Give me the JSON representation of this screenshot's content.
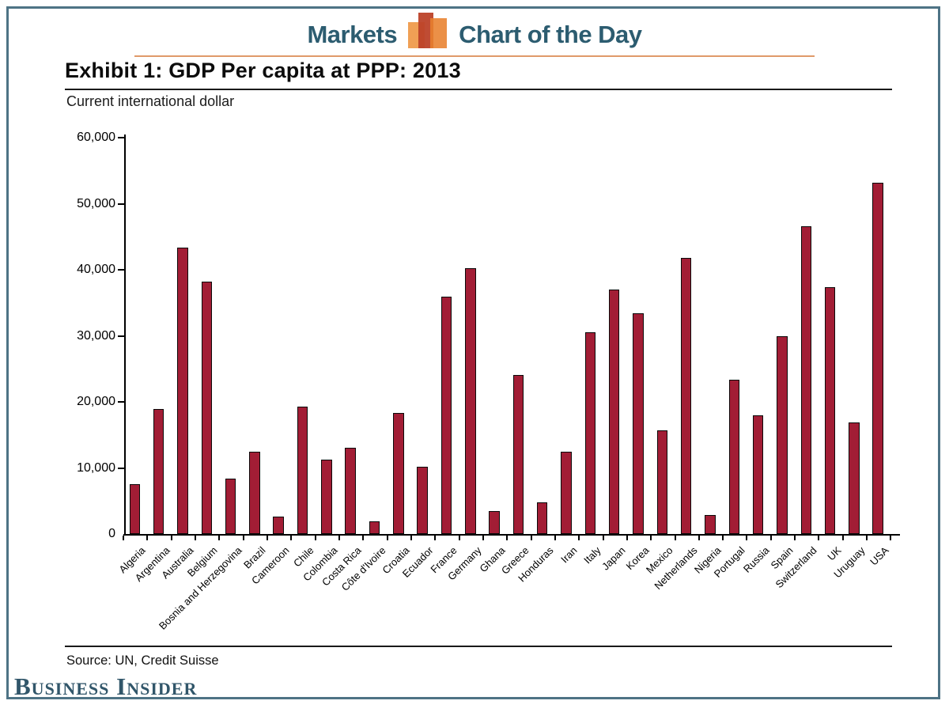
{
  "header": {
    "left_label": "Markets",
    "right_label": "Chart of the Day",
    "icon": "bar-chart-icon",
    "accent_color": "#2c5c70",
    "rule_color": "#e09a6a"
  },
  "title": "Exhibit 1: GDP Per capita at PPP: 2013",
  "subtitle": "Current international dollar",
  "source": "Source: UN, Credit Suisse",
  "footer": {
    "logo_text": "Business Insider",
    "logo_color": "#31566a"
  },
  "frame_color": "#4e7385",
  "chart_data": {
    "type": "bar",
    "title": "Exhibit 1: GDP Per capita at PPP: 2013",
    "ylabel": "Current international dollar",
    "xlabel": "",
    "ylim": [
      0,
      60000
    ],
    "yticks": [
      0,
      10000,
      20000,
      30000,
      40000,
      50000,
      60000
    ],
    "ytick_labels": [
      "0",
      "10,000",
      "20,000",
      "30,000",
      "40,000",
      "50,000",
      "60,000"
    ],
    "grid": false,
    "legend": "none",
    "bar_color": "#a21d35",
    "bar_edge_color": "#000000",
    "categories": [
      "Algeria",
      "Argentina",
      "Australia",
      "Belgium",
      "Bosnia and Herzegovina",
      "Brazil",
      "Cameroon",
      "Chile",
      "Colombia",
      "Costa Rica",
      "Côte d'Ivoire",
      "Croatia",
      "Ecuador",
      "France",
      "Germany",
      "Ghana",
      "Greece",
      "Honduras",
      "Iran",
      "Italy",
      "Japan",
      "Korea",
      "Mexico",
      "Netherlands",
      "Nigeria",
      "Portugal",
      "Russia",
      "Spain",
      "Switzerland",
      "UK",
      "Uruguay",
      "USA"
    ],
    "values": [
      7500,
      18900,
      43400,
      38200,
      8400,
      12400,
      2600,
      19300,
      11300,
      13100,
      1900,
      18300,
      10200,
      35900,
      40200,
      3500,
      24100,
      4800,
      12400,
      30500,
      37000,
      33400,
      15700,
      41800,
      2900,
      23300,
      18000,
      30000,
      46600,
      37400,
      16900,
      53200
    ]
  }
}
